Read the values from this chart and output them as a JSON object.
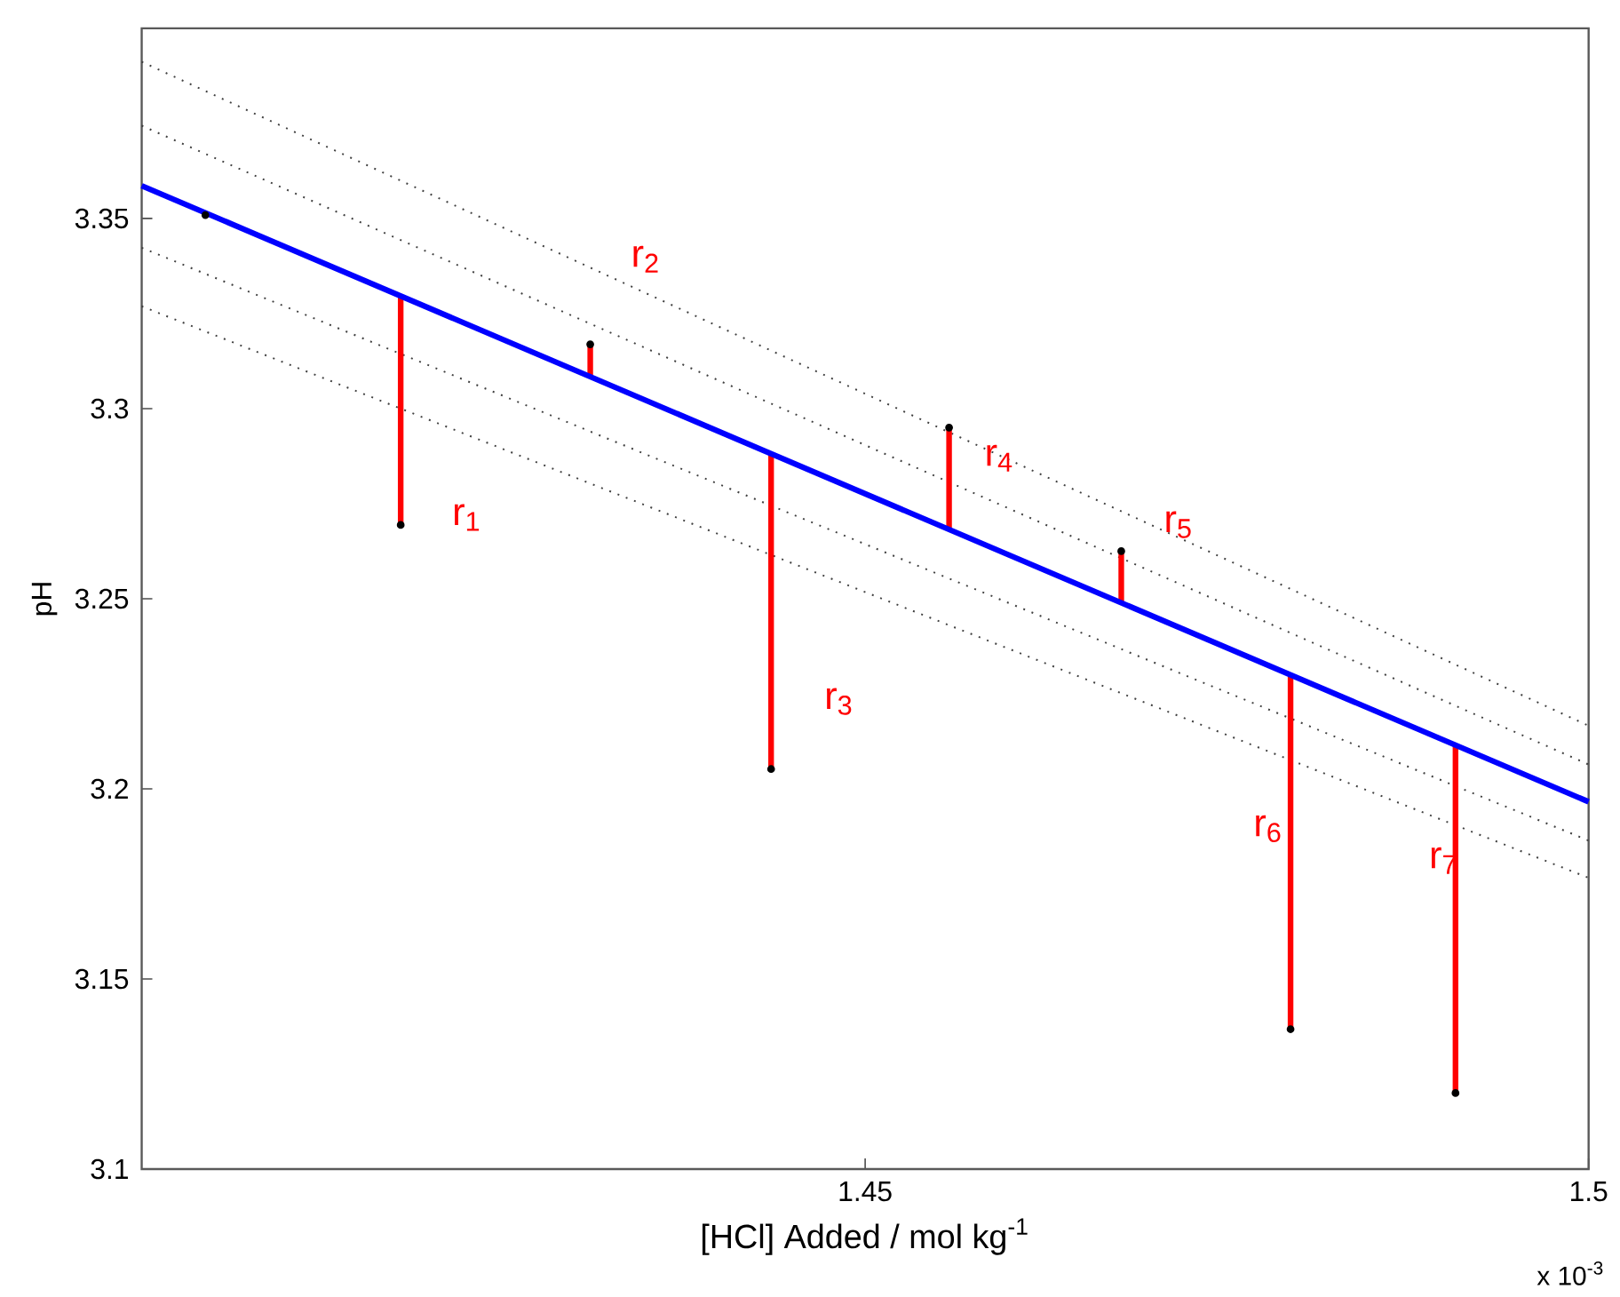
{
  "chart_data": {
    "type": "scatter",
    "xlabel": "[HCl] Added / mol kg$^{-1}$",
    "ylabel": "pH",
    "xlim": [
      1.4,
      1.5
    ],
    "xticks": [
      1.45,
      1.5
    ],
    "ylim": [
      3.1,
      3.4
    ],
    "yticks": [
      3.1,
      3.15,
      3.2,
      3.25,
      3.3,
      3.35
    ],
    "grid": false,
    "legend": false,
    "series": [
      {
        "type": "line",
        "line_style": "dotted",
        "color": "#404040",
        "x": [
          1.4,
          1.5
        ],
        "values": [
          3.3912,
          3.2166
        ]
      },
      {
        "type": "line",
        "line_style": "dotted",
        "color": "#404040",
        "x": [
          1.4,
          1.5
        ],
        "values": [
          3.3744,
          3.2064
        ]
      },
      {
        "type": "line",
        "line_style": "dotted",
        "color": "#404040",
        "x": [
          1.4,
          1.5
        ],
        "values": [
          3.3423,
          3.1864
        ]
      },
      {
        "type": "line",
        "line_style": "dotted",
        "color": "#404040",
        "x": [
          1.4,
          1.5
        ],
        "values": [
          3.3269,
          3.1766
        ]
      },
      {
        "type": "line",
        "name": "r$_{1}$",
        "line_style": "solid",
        "color": "#ff0000",
        "x": [
          1.4179,
          1.4179
        ],
        "values": [
          3.2694,
          3.3296
        ]
      },
      {
        "type": "line",
        "name": "r$_{2}$",
        "line_style": "solid",
        "color": "#ff0000",
        "x": [
          1.431,
          1.431
        ],
        "values": [
          3.3084,
          3.3169
        ]
      },
      {
        "type": "line",
        "name": "r$_{3}$",
        "line_style": "solid",
        "color": "#ff0000",
        "x": [
          1.4435,
          1.4435
        ],
        "values": [
          3.2052,
          3.2881
        ]
      },
      {
        "type": "line",
        "name": "r$_{4}$",
        "line_style": "solid",
        "color": "#ff0000",
        "x": [
          1.4558,
          1.4558
        ],
        "values": [
          3.2682,
          3.295
        ]
      },
      {
        "type": "line",
        "name": "r$_{5}$",
        "line_style": "solid",
        "color": "#ff0000",
        "x": [
          1.4677,
          1.4677
        ],
        "values": [
          3.2489,
          3.2625
        ]
      },
      {
        "type": "line",
        "name": "r$_{6}$",
        "line_style": "solid",
        "color": "#ff0000",
        "x": [
          1.4794,
          1.4794
        ],
        "values": [
          3.1368,
          3.23
        ]
      },
      {
        "type": "line",
        "name": "r$_{7}$",
        "line_style": "solid",
        "color": "#ff0000",
        "x": [
          1.4908,
          1.4908
        ],
        "values": [
          3.12,
          3.2115
        ]
      },
      {
        "type": "line",
        "line_style": "solid",
        "color": "#0000ff",
        "x": [
          1.4,
          1.5
        ],
        "values": [
          3.3586,
          3.1966
        ]
      },
      {
        "color": "#000000",
        "x": [
          1.4044,
          1.4179,
          1.431,
          1.4435,
          1.4558,
          1.4677,
          1.4794,
          1.4908
        ],
        "values": [
          3.3509,
          3.2694,
          3.3169,
          3.2052,
          3.295,
          3.2625,
          3.1368,
          3.12
        ]
      }
    ],
    "annotations": [
      "x 10$^{-3}$"
    ]
  }
}
